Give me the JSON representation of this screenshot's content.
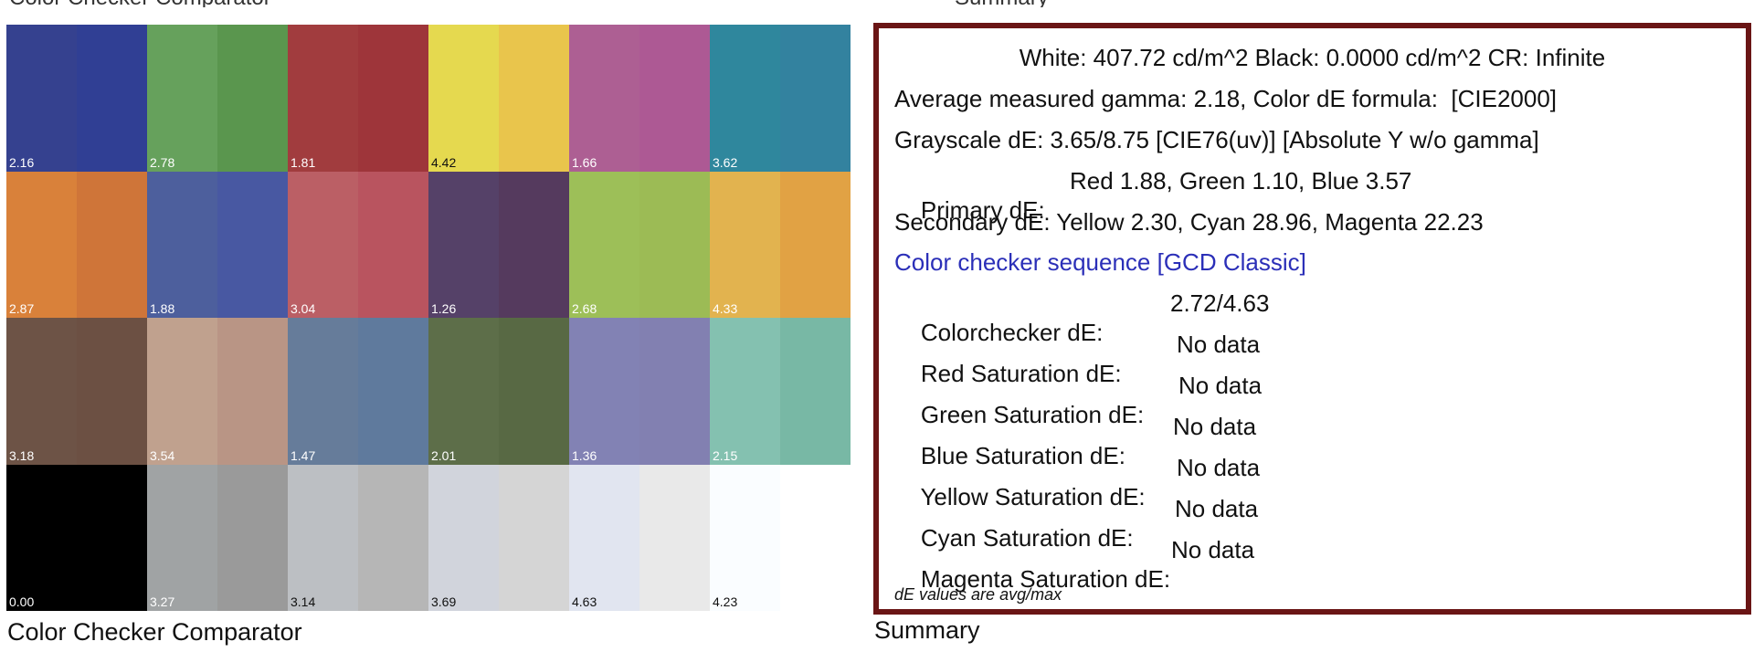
{
  "top_fragments": [
    {
      "text": "Color Checker Comparator"
    },
    {
      "text": "Summary"
    }
  ],
  "checker": {
    "caption": "Color Checker Comparator",
    "patches": [
      {
        "left": "#35418f",
        "right": "#303f94",
        "value": "2.16",
        "label_color": "#ffffff"
      },
      {
        "left": "#66a15c",
        "right": "#5a964e",
        "value": "2.78",
        "label_color": "#ffffff"
      },
      {
        "left": "#a13c3e",
        "right": "#9e353a",
        "value": "1.81",
        "label_color": "#ffffff"
      },
      {
        "left": "#e5d94f",
        "right": "#e9c54c",
        "value": "4.42",
        "label_color": "#111111"
      },
      {
        "left": "#ad5f93",
        "right": "#ad5994",
        "value": "1.66",
        "label_color": "#ffffff"
      },
      {
        "left": "#2f879d",
        "right": "#33829f",
        "value": "3.62",
        "label_color": "#ffffff"
      },
      {
        "left": "#d9813a",
        "right": "#cf7539",
        "value": "2.87",
        "label_color": "#ffffff"
      },
      {
        "left": "#4d5f9d",
        "right": "#4858a2",
        "value": "1.88",
        "label_color": "#ffffff"
      },
      {
        "left": "#bb5f65",
        "right": "#b9545f",
        "value": "3.04",
        "label_color": "#ffffff"
      },
      {
        "left": "#554168",
        "right": "#553a5e",
        "value": "1.26",
        "label_color": "#ffffff"
      },
      {
        "left": "#9dbf58",
        "right": "#9cbb55",
        "value": "2.68",
        "label_color": "#ffffff"
      },
      {
        "left": "#e2b34f",
        "right": "#e1a244",
        "value": "4.33",
        "label_color": "#ffffff"
      },
      {
        "left": "#6d5346",
        "right": "#6c5043",
        "value": "3.18",
        "label_color": "#ffffff"
      },
      {
        "left": "#c0a18e",
        "right": "#b99585",
        "value": "3.54",
        "label_color": "#ffffff"
      },
      {
        "left": "#667c9a",
        "right": "#5f7a9d",
        "value": "1.47",
        "label_color": "#ffffff"
      },
      {
        "left": "#5d6e49",
        "right": "#586944",
        "value": "2.01",
        "label_color": "#ffffff"
      },
      {
        "left": "#8282b4",
        "right": "#8280b1",
        "value": "1.36",
        "label_color": "#ffffff"
      },
      {
        "left": "#84c1b0",
        "right": "#78b8a5",
        "value": "2.15",
        "label_color": "#ffffff"
      },
      {
        "left": "#000000",
        "right": "#000000",
        "value": "0.00",
        "label_color": "#ffffff"
      },
      {
        "left": "#a0a3a4",
        "right": "#9a9a9a",
        "value": "3.27",
        "label_color": "#ffffff"
      },
      {
        "left": "#bcbfc3",
        "right": "#b6b6b6",
        "value": "3.14",
        "label_color": "#111111"
      },
      {
        "left": "#d1d4dc",
        "right": "#d5d5d5",
        "value": "3.69",
        "label_color": "#111111"
      },
      {
        "left": "#e1e5f0",
        "right": "#e9e9e9",
        "value": "4.63",
        "label_color": "#111111"
      },
      {
        "left": "#fafdff",
        "right": "#ffffff",
        "value": "4.23",
        "label_color": "#111111"
      }
    ]
  },
  "summary": {
    "caption": "Summary",
    "white_black_line": "White: 407.72 cd/m^2 Black: 0.0000 cd/m^2 CR: Infinite",
    "gamma_line": "Average measured gamma: 2.18, Color dE formula:  [CIE2000]",
    "grayscale_line": "Grayscale dE: 3.65/8.75 [CIE76(uv)] [Absolute Y w/o gamma]",
    "primary_label": "Primary dE:",
    "primary_value": "Red 1.88, Green 1.10, Blue 3.57",
    "secondary_line": "Secondary dE: Yellow 2.30, Cyan 28.96, Magenta 22.23",
    "sequence_link": "Color checker sequence [GCD Classic]",
    "colorchecker_label": "Colorchecker dE:",
    "colorchecker_value": "2.72/4.63",
    "saturation_rows": [
      {
        "label": "Red Saturation dE:",
        "value": "No data"
      },
      {
        "label": "Green Saturation dE:",
        "value": "No data"
      },
      {
        "label": "Blue Saturation dE:",
        "value": "No data"
      },
      {
        "label": "Yellow Saturation dE:",
        "value": "No data"
      },
      {
        "label": "Cyan Saturation dE:",
        "value": "No data"
      },
      {
        "label": "Magenta Saturation dE:",
        "value": "No data"
      }
    ],
    "footnote": "dE values are avg/max",
    "border_color": "#6a1515",
    "link_color": "#2b2fb8"
  }
}
